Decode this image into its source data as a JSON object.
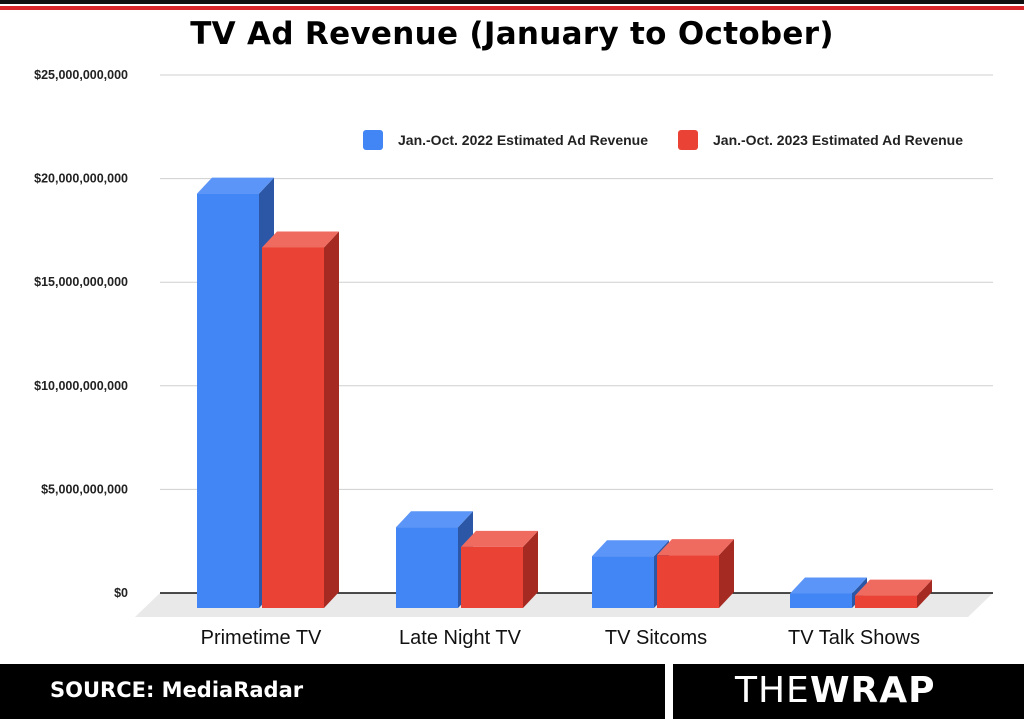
{
  "header": {
    "title": "TV Ad Revenue (January to October)"
  },
  "footer": {
    "source": "SOURCE: MediaRadar",
    "logo_thin": "THE",
    "logo_bold": "WRAP"
  },
  "colors": {
    "series_2022": "#4285f4",
    "series_2023": "#ea4335",
    "accent_red": "#d9262b"
  },
  "chart_data": {
    "type": "bar",
    "title": "TV Ad Revenue (January to October)",
    "categories": [
      "Primetime TV",
      "Late Night TV",
      "TV Sitcoms",
      "TV Talk Shows"
    ],
    "series": [
      {
        "name": "Jan.-Oct. 2022 Estimated Ad Revenue",
        "values": [
          20000000000,
          3900000000,
          2500000000,
          700000000
        ]
      },
      {
        "name": "Jan.-Oct. 2023 Estimated Ad Revenue",
        "values": [
          17400000000,
          2950000000,
          2550000000,
          600000000
        ]
      }
    ],
    "ylim": [
      0,
      25000000000
    ],
    "yticks": [
      0,
      5000000000,
      10000000000,
      15000000000,
      20000000000,
      25000000000
    ],
    "ytick_labels": [
      "$0",
      "$5,000,000,000",
      "$10,000,000,000",
      "$15,000,000,000",
      "$20,000,000,000",
      "$25,000,000,000"
    ],
    "grid": true,
    "legend_position": "top-right"
  }
}
